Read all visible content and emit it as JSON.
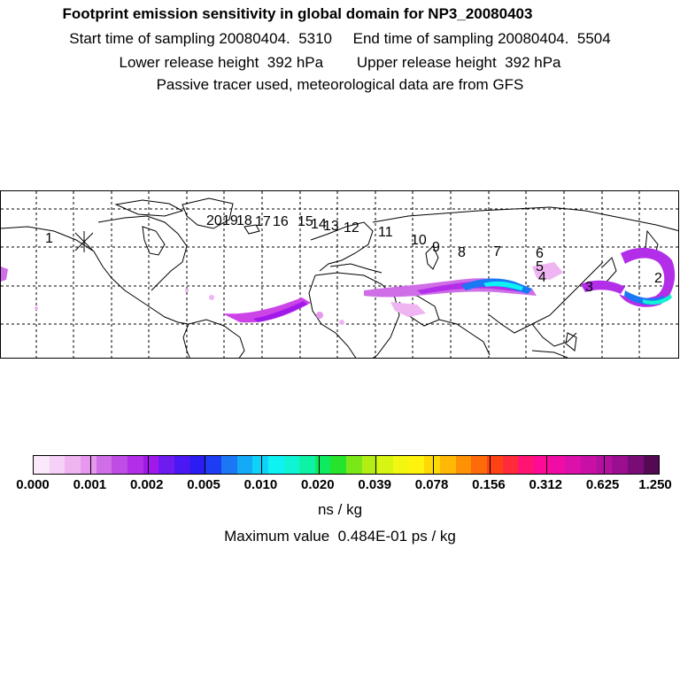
{
  "header": {
    "title": "Footprint emission sensitivity in global domain for NP3_20080403",
    "sampling_line": "Start time of sampling 20080404.  5310     End time of sampling 20080404.  5504",
    "height_line": "Lower release height  392 hPa        Upper release height  392 hPa",
    "tracer_line": "Passive tracer used, meteorological data are from GFS"
  },
  "map": {
    "release_marker": "release-site-cross-icon",
    "day_labels": [
      "1",
      "2",
      "3",
      "4",
      "5",
      "6",
      "7",
      "8",
      "9",
      "10",
      "11",
      "12",
      "13",
      "14",
      "15",
      "16",
      "17",
      "18",
      "19",
      "20"
    ]
  },
  "colorbar": {
    "colors": [
      "#fbe9fb",
      "#f6d0f6",
      "#efb4f2",
      "#e798ee",
      "#d06ee8",
      "#c04ce6",
      "#b22ee8",
      "#a019ea",
      "#6e1bf0",
      "#4a18f2",
      "#2a1cf2",
      "#1e3cf4",
      "#1a78f5",
      "#14aaf7",
      "#10d2f8",
      "#0ef2f4",
      "#10f4d6",
      "#0ef2a6",
      "#0eea62",
      "#26e42c",
      "#7ae818",
      "#b2ee14",
      "#d8f412",
      "#f2f610",
      "#fff20c",
      "#ffd808",
      "#ffb806",
      "#ff9104",
      "#ff6a0a",
      "#ff4214",
      "#ff2a3a",
      "#ff1474",
      "#ff0a96",
      "#f00ca6",
      "#dc10aa",
      "#c810a6",
      "#b410a0",
      "#9a0e90",
      "#7a0c78",
      "#540a52"
    ],
    "tick_labels": [
      "0.000",
      "0.001",
      "0.002",
      "0.005",
      "0.010",
      "0.020",
      "0.039",
      "0.078",
      "0.156",
      "0.312",
      "0.625",
      "1.250"
    ],
    "units": "ns / kg",
    "max_value": "Maximum value  0.484E-01 ps / kg"
  }
}
